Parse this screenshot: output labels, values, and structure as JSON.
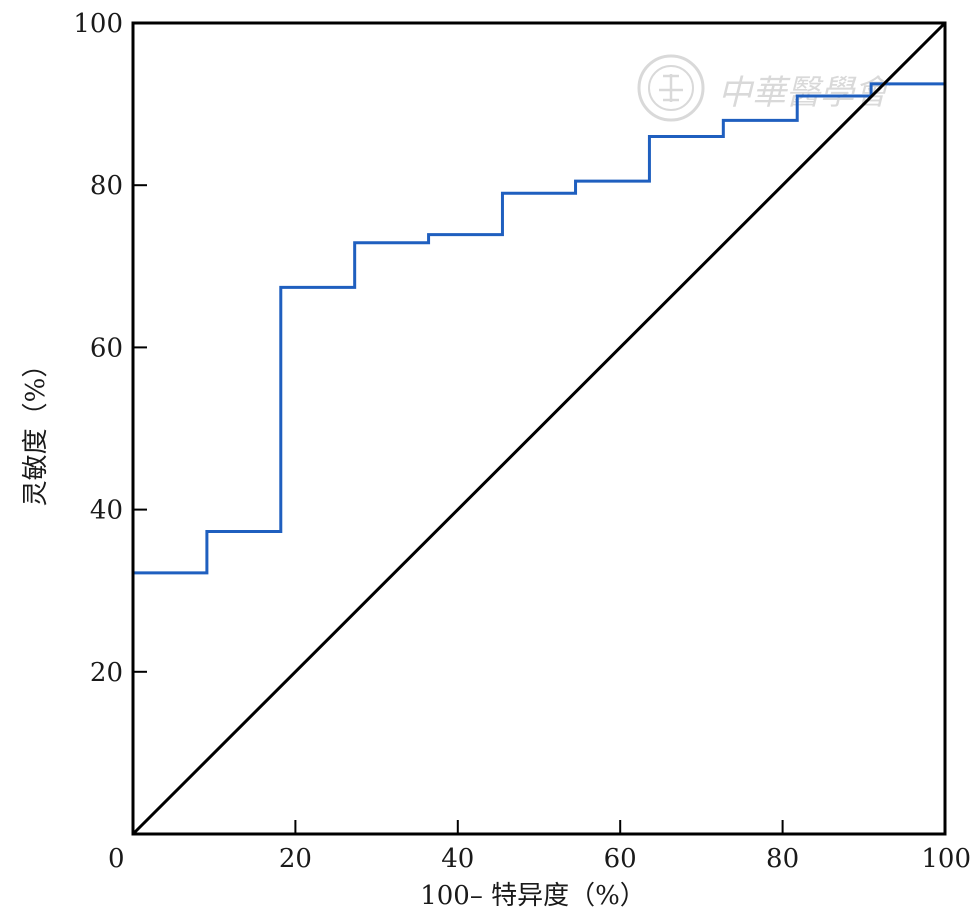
{
  "chart_data": {
    "type": "line",
    "xlabel": "100– 特异度（%）",
    "ylabel": "灵敏度（%）",
    "xlim": [
      0,
      100
    ],
    "ylim": [
      0,
      100
    ],
    "x_ticks": [
      "0",
      "20",
      "40",
      "60",
      "80",
      "100"
    ],
    "y_ticks": [
      "20",
      "40",
      "60",
      "80",
      "100"
    ],
    "y_tick_values": [
      20,
      40,
      60,
      80,
      100
    ],
    "x_tick_values": [
      0,
      20,
      40,
      60,
      80,
      100
    ],
    "grid": false,
    "series": [
      {
        "style": "step",
        "color": "#1f5fbf",
        "points": [
          [
            0,
            0
          ],
          [
            0,
            32.2
          ],
          [
            9.1,
            32.2
          ],
          [
            9.1,
            37.3
          ],
          [
            18.2,
            37.3
          ],
          [
            18.2,
            67.4
          ],
          [
            27.3,
            67.4
          ],
          [
            27.3,
            72.9
          ],
          [
            36.4,
            72.9
          ],
          [
            36.4,
            73.9
          ],
          [
            45.5,
            73.9
          ],
          [
            45.5,
            79.0
          ],
          [
            54.5,
            79.0
          ],
          [
            54.5,
            80.5
          ],
          [
            63.6,
            80.5
          ],
          [
            63.6,
            86.0
          ],
          [
            72.7,
            86.0
          ],
          [
            72.7,
            88.0
          ],
          [
            81.8,
            88.0
          ],
          [
            81.8,
            91.0
          ],
          [
            90.9,
            91.0
          ],
          [
            90.9,
            92.5
          ],
          [
            100,
            92.5
          ],
          [
            100,
            100
          ]
        ]
      },
      {
        "style": "reference-diagonal",
        "color": "#000000",
        "points": [
          [
            0,
            0
          ],
          [
            100,
            100
          ]
        ]
      }
    ]
  },
  "watermark": {
    "text": "中華醫學會",
    "color": "#d9d9d9",
    "icon": "seal-icon"
  }
}
